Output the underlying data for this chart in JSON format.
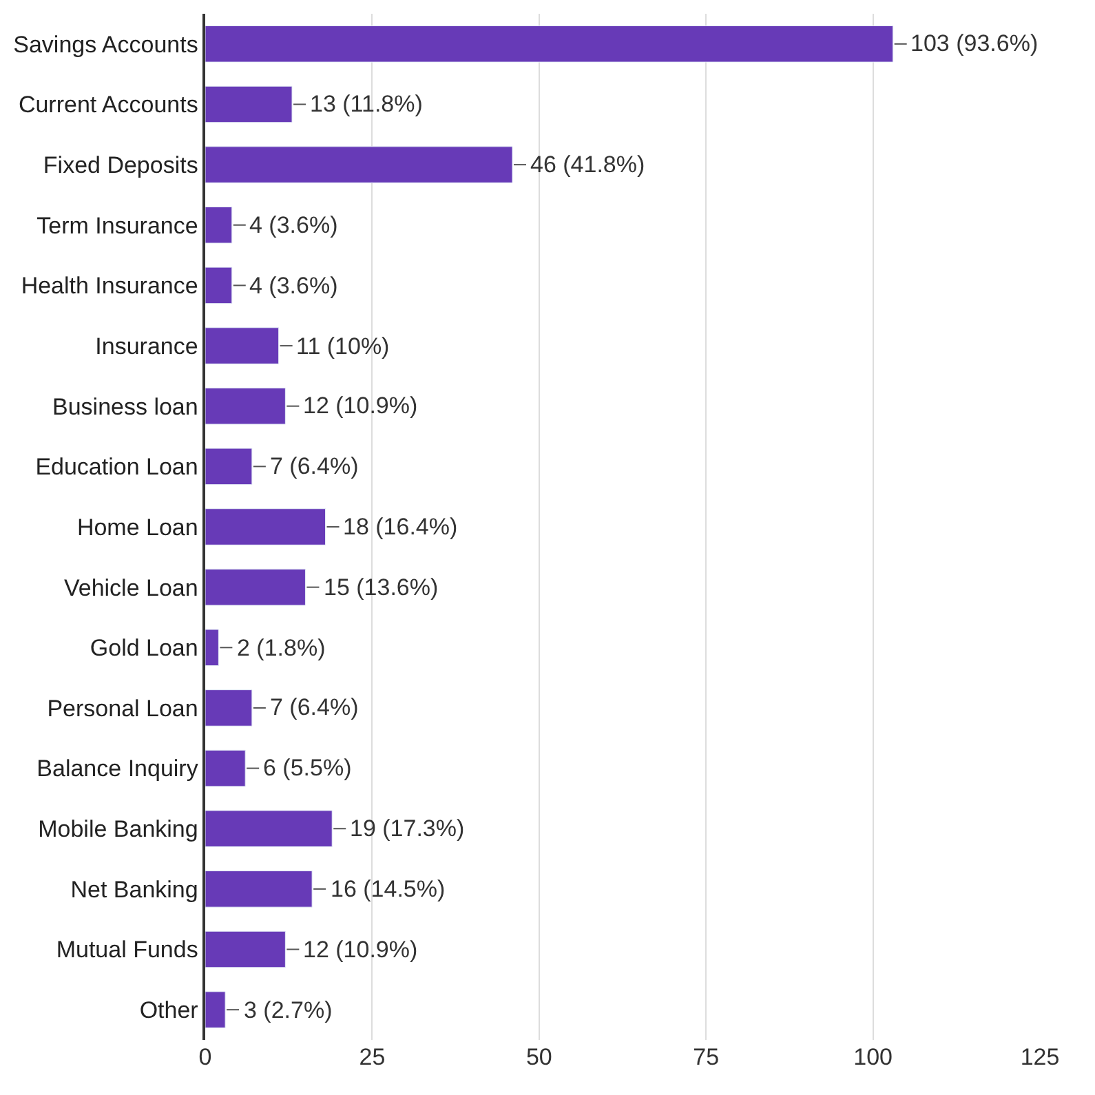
{
  "chart_data": {
    "type": "bar",
    "orientation": "horizontal",
    "categories": [
      "Savings Accounts",
      "Current Accounts",
      "Fixed Deposits",
      "Term Insurance",
      "Health Insurance",
      "Insurance",
      "Business loan",
      "Education Loan",
      "Home Loan",
      "Vehicle Loan",
      "Gold Loan",
      "Personal Loan",
      "Balance Inquiry",
      "Mobile Banking",
      "Net Banking",
      "Mutual Funds",
      "Other"
    ],
    "series": [
      {
        "color": "#673ab7",
        "values": [
          103,
          13,
          46,
          4,
          4,
          11,
          12,
          7,
          18,
          15,
          2,
          7,
          6,
          19,
          16,
          12,
          3
        ],
        "value_labels": [
          "103 (93.6%)",
          "13 (11.8%)",
          "46 (41.8%)",
          "4 (3.6%)",
          "4 (3.6%)",
          "11 (10%)",
          "12 (10.9%)",
          "7 (6.4%)",
          "18 (16.4%)",
          "15 (13.6%)",
          "2 (1.8%)",
          "7 (6.4%)",
          "6 (5.5%)",
          "19 (17.3%)",
          "16 (14.5%)",
          "12 (10.9%)",
          "3 (2.7%)"
        ]
      }
    ],
    "xlim": [
      0,
      125
    ],
    "xticks": [
      0,
      25,
      50,
      75,
      100,
      125
    ],
    "grid": "x",
    "legend": false
  }
}
